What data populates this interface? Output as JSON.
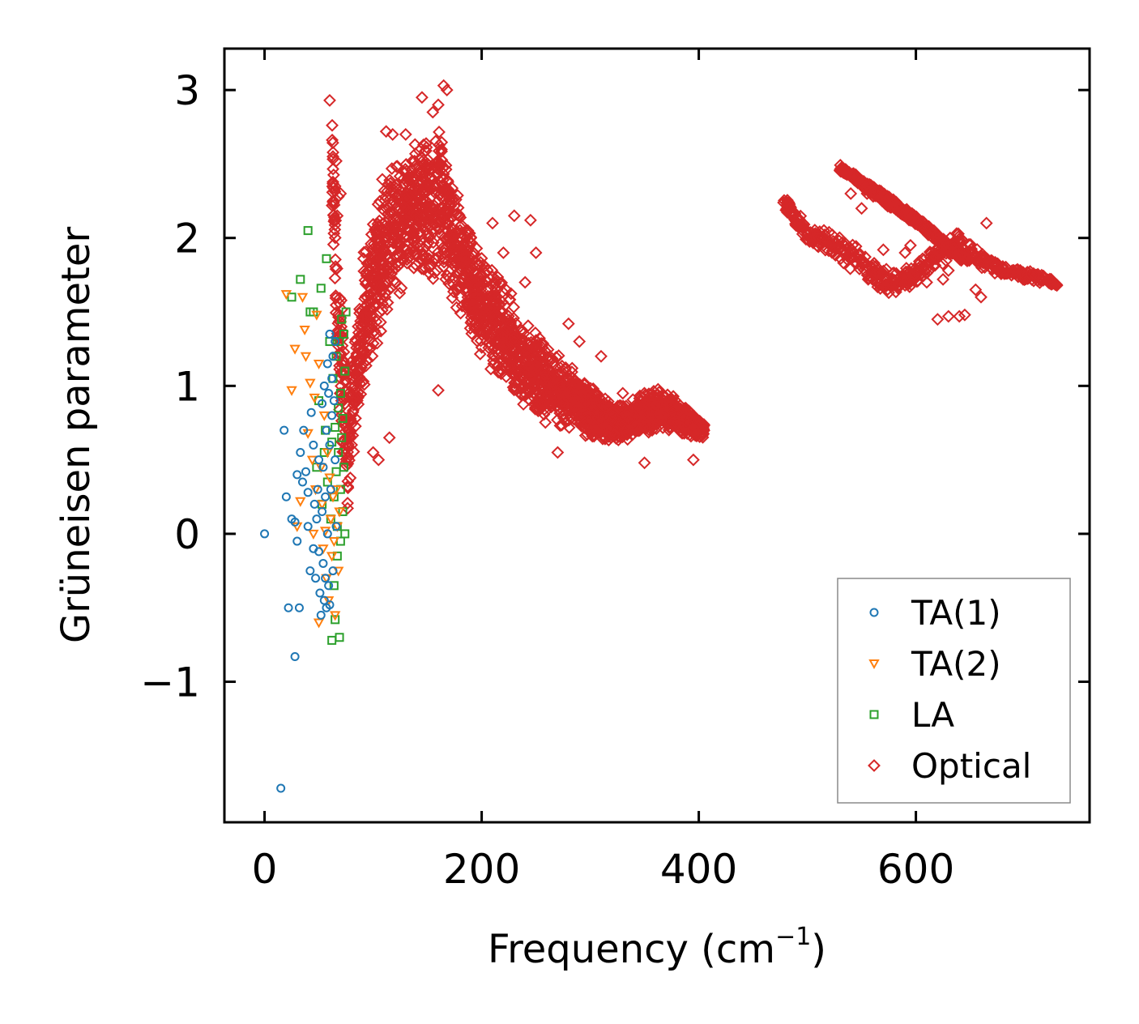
{
  "chart_data": {
    "type": "scatter",
    "title": "",
    "xlabel": "Frequency (cm",
    "xlabel_sup": "−1",
    "xlabel_close": ")",
    "ylabel": "Grüneisen parameter",
    "xlim": [
      -37,
      760
    ],
    "ylim": [
      -1.95,
      3.28
    ],
    "xticks": [
      0,
      200,
      400,
      600
    ],
    "xtick_labels": [
      "0",
      "200",
      "400",
      "600"
    ],
    "yticks": [
      -1,
      0,
      1,
      2,
      3
    ],
    "ytick_labels": [
      "−1",
      "0",
      "1",
      "2",
      "3"
    ],
    "grid": false,
    "legend_position": "lower-right",
    "series": [
      {
        "name": "TA(1)",
        "color": "#1f77b4",
        "marker": "circle",
        "points": [
          [
            0,
            0.0
          ],
          [
            15,
            -1.72
          ],
          [
            18,
            0.7
          ],
          [
            20,
            0.25
          ],
          [
            22,
            -0.5
          ],
          [
            25,
            0.1
          ],
          [
            28,
            -0.83
          ],
          [
            28,
            0.08
          ],
          [
            30,
            0.4
          ],
          [
            30,
            -0.05
          ],
          [
            32,
            -0.5
          ],
          [
            33,
            0.55
          ],
          [
            35,
            0.35
          ],
          [
            36,
            0.7
          ],
          [
            38,
            0.42
          ],
          [
            40,
            0.05
          ],
          [
            40,
            0.28
          ],
          [
            42,
            -0.25
          ],
          [
            43,
            0.82
          ],
          [
            45,
            -0.1
          ],
          [
            45,
            0.6
          ],
          [
            46,
            0.2
          ],
          [
            47,
            -0.3
          ],
          [
            48,
            0.1
          ],
          [
            49,
            0.3
          ],
          [
            50,
            -0.12
          ],
          [
            50,
            0.5
          ],
          [
            51,
            -0.4
          ],
          [
            52,
            -0.55
          ],
          [
            53,
            0.15
          ],
          [
            53,
            0.88
          ],
          [
            54,
            0.45
          ],
          [
            54,
            -0.2
          ],
          [
            55,
            -0.45
          ],
          [
            55,
            1.0
          ],
          [
            56,
            0.25
          ],
          [
            56,
            -0.3
          ],
          [
            57,
            0.7
          ],
          [
            57,
            -0.5
          ],
          [
            58,
            1.15
          ],
          [
            58,
            0.0
          ],
          [
            59,
            -0.35
          ],
          [
            59,
            0.95
          ],
          [
            60,
            1.35
          ],
          [
            60,
            -0.48
          ],
          [
            60,
            0.6
          ],
          [
            61,
            0.3
          ],
          [
            62,
            1.05
          ],
          [
            62,
            0.8
          ],
          [
            63,
            1.2
          ],
          [
            63,
            -0.25
          ],
          [
            64,
            0.9
          ],
          [
            65,
            1.3
          ],
          [
            65,
            0.5
          ],
          [
            66,
            0.05
          ]
        ]
      },
      {
        "name": "TA(2)",
        "color": "#ff7f0e",
        "marker": "triangle-down",
        "points": [
          [
            20,
            1.62
          ],
          [
            25,
            0.97
          ],
          [
            28,
            1.25
          ],
          [
            30,
            0.05
          ],
          [
            33,
            0.22
          ],
          [
            35,
            1.6
          ],
          [
            37,
            1.38
          ],
          [
            38,
            1.2
          ],
          [
            40,
            0.68
          ],
          [
            42,
            1.02
          ],
          [
            44,
            0.5
          ],
          [
            45,
            0.0
          ],
          [
            46,
            0.92
          ],
          [
            47,
            0.3
          ],
          [
            48,
            1.48
          ],
          [
            50,
            -0.6
          ],
          [
            50,
            1.15
          ],
          [
            52,
            0.45
          ],
          [
            53,
            0.2
          ],
          [
            54,
            -0.1
          ],
          [
            55,
            0.8
          ],
          [
            56,
            0.02
          ],
          [
            57,
            -0.3
          ],
          [
            58,
            0.55
          ],
          [
            59,
            -0.45
          ],
          [
            60,
            0.38
          ],
          [
            61,
            0.1
          ],
          [
            62,
            -0.15
          ],
          [
            63,
            0.25
          ],
          [
            64,
            -0.05
          ],
          [
            65,
            -0.55
          ],
          [
            66,
            0.3
          ],
          [
            67,
            0.05
          ],
          [
            68,
            -0.25
          ],
          [
            69,
            0.15
          ]
        ]
      },
      {
        "name": "LA",
        "color": "#2ca02c",
        "marker": "square",
        "points": [
          [
            25,
            1.6
          ],
          [
            33,
            1.72
          ],
          [
            40,
            2.05
          ],
          [
            42,
            1.5
          ],
          [
            45,
            1.5
          ],
          [
            48,
            0.45
          ],
          [
            50,
            0.9
          ],
          [
            52,
            1.66
          ],
          [
            53,
            0.2
          ],
          [
            55,
            0.55
          ],
          [
            56,
            0.7
          ],
          [
            57,
            1.86
          ],
          [
            58,
            0.35
          ],
          [
            60,
            1.3
          ],
          [
            61,
            0.1
          ],
          [
            62,
            0.62
          ],
          [
            62,
            -0.72
          ],
          [
            63,
            1.05
          ],
          [
            64,
            0.25
          ],
          [
            64,
            -0.35
          ],
          [
            65,
            0.72
          ],
          [
            65,
            -0.58
          ],
          [
            66,
            0.42
          ],
          [
            66,
            1.2
          ],
          [
            67,
            0.05
          ],
          [
            67,
            -0.15
          ],
          [
            68,
            0.85
          ],
          [
            68,
            0.55
          ],
          [
            69,
            -0.7
          ],
          [
            69,
            1.3
          ],
          [
            70,
            0.3
          ],
          [
            70,
            -0.05
          ],
          [
            70,
            0.95
          ],
          [
            71,
            0.65
          ],
          [
            71,
            1.45
          ],
          [
            72,
            0.15
          ],
          [
            72,
            0.78
          ],
          [
            73,
            0.45
          ],
          [
            73,
            1.35
          ],
          [
            74,
            0.0
          ],
          [
            74,
            1.1
          ],
          [
            75,
            1.5
          ]
        ]
      },
      {
        "name": "Optical",
        "color": "#d62728",
        "marker": "diamond",
        "points": [],
        "curves": [
          {
            "x": [
              62,
              65,
              68,
              72,
              76,
              80,
              85,
              90,
              100,
              110,
              120,
              130,
              140,
              150,
              160,
              170,
              180,
              190,
              200,
              215,
              230,
              245,
              260,
              275,
              290,
              305,
              320,
              335,
              350,
              365,
              380,
              395,
              405
            ],
            "y": [
              2.6,
              2.0,
              1.4,
              1.0,
              0.55,
              0.8,
              1.1,
              1.4,
              1.7,
              1.9,
              2.05,
              2.15,
              2.2,
              2.2,
              2.2,
              2.1,
              1.85,
              1.7,
              1.55,
              1.4,
              1.25,
              1.12,
              1.02,
              0.95,
              0.88,
              0.8,
              0.75,
              0.76,
              0.82,
              0.85,
              0.8,
              0.72,
              0.7
            ],
            "spread": [
              0.35,
              0.5,
              0.6,
              0.55,
              0.5,
              0.5,
              0.45,
              0.5,
              0.55,
              0.55,
              0.5,
              0.5,
              0.5,
              0.5,
              0.55,
              0.5,
              0.45,
              0.4,
              0.4,
              0.4,
              0.35,
              0.3,
              0.28,
              0.25,
              0.2,
              0.18,
              0.15,
              0.13,
              0.15,
              0.15,
              0.12,
              0.1,
              0.05
            ]
          },
          {
            "x": [
              478,
              490,
              500,
              515,
              530,
              545,
              560,
              580,
              600,
              620,
              640,
              660,
              680,
              700,
              720,
              730
            ],
            "y": [
              2.25,
              2.12,
              2.03,
              1.98,
              1.93,
              1.85,
              1.75,
              1.7,
              1.75,
              1.9,
              1.97,
              1.85,
              1.78,
              1.75,
              1.72,
              1.68
            ],
            "spread": [
              0.05,
              0.06,
              0.07,
              0.08,
              0.1,
              0.1,
              0.1,
              0.08,
              0.08,
              0.1,
              0.08,
              0.06,
              0.05,
              0.04,
              0.03,
              0.02
            ]
          },
          {
            "x": [
              530,
              545,
              560,
              580,
              600,
              620,
              640,
              650
            ],
            "y": [
              2.47,
              2.4,
              2.32,
              2.22,
              2.12,
              2.0,
              1.88,
              1.85
            ],
            "spread": [
              0.03,
              0.03,
              0.04,
              0.04,
              0.04,
              0.04,
              0.03,
              0.03
            ]
          }
        ],
        "outliers": [
          [
            60,
            2.93
          ],
          [
            63,
            2.55
          ],
          [
            66,
            2.52
          ],
          [
            65,
            2.35
          ],
          [
            68,
            2.28
          ],
          [
            70,
            2.3
          ],
          [
            67,
            2.15
          ],
          [
            112,
            2.72
          ],
          [
            118,
            2.7
          ],
          [
            130,
            2.7
          ],
          [
            165,
            3.03
          ],
          [
            168,
            3.0
          ],
          [
            160,
            2.9
          ],
          [
            145,
            2.95
          ],
          [
            155,
            2.85
          ],
          [
            230,
            2.15
          ],
          [
            245,
            2.12
          ],
          [
            220,
            1.9
          ],
          [
            250,
            1.9
          ],
          [
            240,
            1.7
          ],
          [
            190,
            2.0
          ],
          [
            210,
            2.1
          ],
          [
            280,
            1.42
          ],
          [
            290,
            1.3
          ],
          [
            310,
            1.2
          ],
          [
            330,
            0.95
          ],
          [
            350,
            0.48
          ],
          [
            395,
            0.5
          ],
          [
            270,
            0.55
          ],
          [
            160,
            0.97
          ],
          [
            100,
            0.55
          ],
          [
            105,
            0.5
          ],
          [
            115,
            0.65
          ],
          [
            620,
            1.45
          ],
          [
            630,
            1.47
          ],
          [
            640,
            1.47
          ],
          [
            645,
            1.48
          ],
          [
            625,
            1.72
          ],
          [
            630,
            1.78
          ],
          [
            610,
            1.7
          ],
          [
            655,
            1.65
          ],
          [
            660,
            1.6
          ],
          [
            665,
            2.1
          ],
          [
            560,
            1.72
          ],
          [
            575,
            1.63
          ],
          [
            590,
            1.68
          ],
          [
            600,
            1.78
          ],
          [
            590,
            1.9
          ],
          [
            595,
            1.95
          ],
          [
            570,
            1.92
          ],
          [
            540,
            2.3
          ],
          [
            550,
            2.2
          ],
          [
            555,
            2.3
          ]
        ]
      }
    ]
  }
}
